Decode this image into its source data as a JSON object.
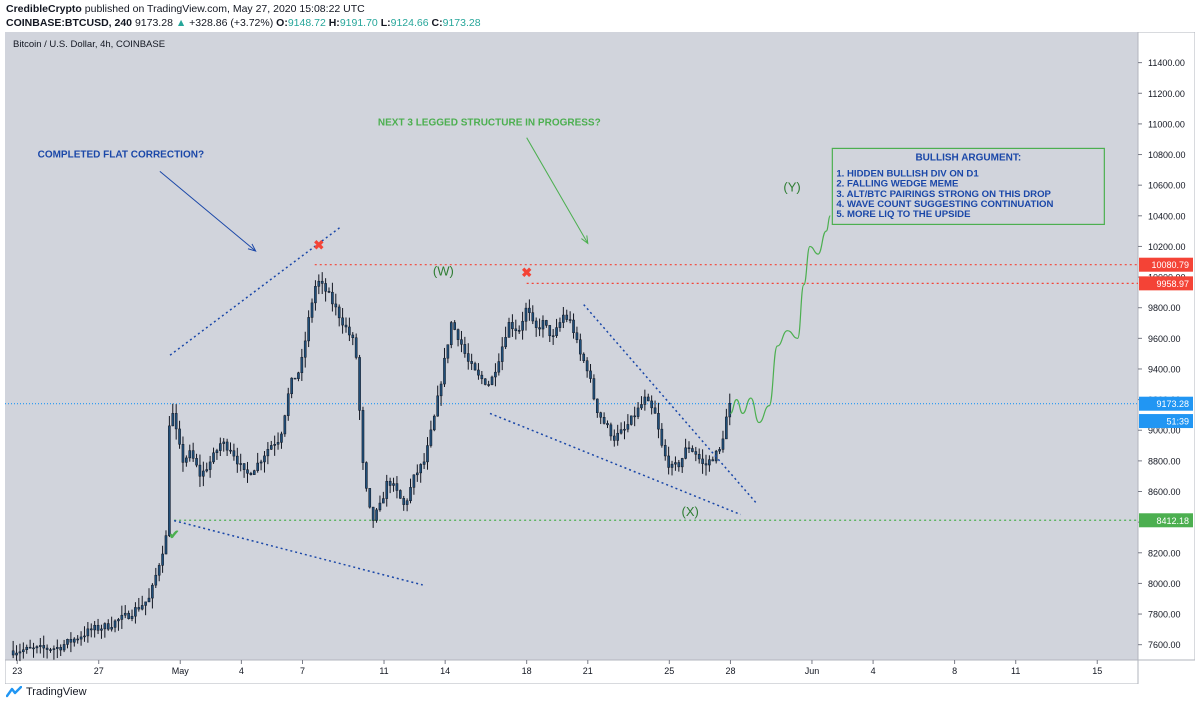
{
  "header": {
    "author": "CredibleCrypto",
    "published_text": "published on TradingView.com, May 27, 2020 15:08:22 UTC",
    "symbol": "COINBASE:BTCUSD, 240",
    "last": "9173.28",
    "change": "+328.86 (+3.72%)",
    "o_label": "O:",
    "o": "9148.72",
    "h_label": "H:",
    "h": "9191.70",
    "l_label": "L:",
    "l": "9124.66",
    "c_label": "C:",
    "c": "9173.28"
  },
  "footer": {
    "brand": "TradingView"
  },
  "chart_data": {
    "type": "candlestick",
    "title": "Bitcoin / U.S. Dollar, 4h, COINBASE",
    "ylim": [
      7500,
      11600
    ],
    "y_ticks": [
      7600,
      7800,
      8000,
      8200,
      8400,
      8600,
      8800,
      9000,
      9200,
      9400,
      9600,
      9800,
      10000,
      10200,
      10400,
      10600,
      10800,
      11000,
      11200,
      11400
    ],
    "y_tick_labels": [
      "7600.00",
      "7800.00",
      "8000.00",
      "8200.00",
      "8400.00",
      "8600.00",
      "8800.00",
      "9000.00",
      "9200.00",
      "9400.00",
      "9600.00",
      "9800.00",
      "10000.00",
      "10200.00",
      "10400.00",
      "10600.00",
      "10800.00",
      "11000.00",
      "11200.00",
      "11400.00"
    ],
    "x_range_days": [
      -8.6,
      47.0
    ],
    "x_ticks": [
      {
        "d": -8,
        "label": "23"
      },
      {
        "d": -4,
        "label": "27"
      },
      {
        "d": 0,
        "label": "May"
      },
      {
        "d": 3,
        "label": "4"
      },
      {
        "d": 6,
        "label": "7"
      },
      {
        "d": 10,
        "label": "11"
      },
      {
        "d": 13,
        "label": "14"
      },
      {
        "d": 17,
        "label": "18"
      },
      {
        "d": 20,
        "label": "21"
      },
      {
        "d": 24,
        "label": "25"
      },
      {
        "d": 27,
        "label": "28"
      },
      {
        "d": 31,
        "label": "Jun"
      },
      {
        "d": 34,
        "label": "4"
      },
      {
        "d": 38,
        "label": "8"
      },
      {
        "d": 41,
        "label": "11"
      },
      {
        "d": 45,
        "label": "15"
      },
      {
        "d": 48,
        "label": "18"
      }
    ],
    "price_anchors": [
      [
        -8.2,
        7560
      ],
      [
        -6,
        7580
      ],
      [
        -4.3,
        7700
      ],
      [
        -3.6,
        7720
      ],
      [
        -2.6,
        7790
      ],
      [
        -1.5,
        7900
      ],
      [
        -0.7,
        8300
      ],
      [
        -0.5,
        9200
      ],
      [
        -0.3,
        9050
      ],
      [
        0.1,
        8800
      ],
      [
        0.5,
        8850
      ],
      [
        1.0,
        8700
      ],
      [
        1.6,
        8820
      ],
      [
        2.0,
        8920
      ],
      [
        2.5,
        8880
      ],
      [
        3.2,
        8700
      ],
      [
        3.8,
        8780
      ],
      [
        4.4,
        8900
      ],
      [
        4.9,
        8950
      ],
      [
        5.4,
        9300
      ],
      [
        5.9,
        9400
      ],
      [
        6.4,
        9800
      ],
      [
        6.7,
        9980
      ],
      [
        7.2,
        9900
      ],
      [
        7.6,
        9800
      ],
      [
        8.0,
        9700
      ],
      [
        8.6,
        9550
      ],
      [
        9.0,
        8700
      ],
      [
        9.4,
        8400
      ],
      [
        9.8,
        8500
      ],
      [
        10.2,
        8680
      ],
      [
        10.6,
        8600
      ],
      [
        11.0,
        8500
      ],
      [
        11.5,
        8700
      ],
      [
        12.0,
        8800
      ],
      [
        12.5,
        9100
      ],
      [
        12.9,
        9400
      ],
      [
        13.3,
        9700
      ],
      [
        13.7,
        9600
      ],
      [
        14.1,
        9450
      ],
      [
        14.6,
        9350
      ],
      [
        15.2,
        9300
      ],
      [
        15.7,
        9500
      ],
      [
        16.1,
        9700
      ],
      [
        16.6,
        9650
      ],
      [
        17.0,
        9800
      ],
      [
        17.4,
        9650
      ],
      [
        17.8,
        9700
      ],
      [
        18.3,
        9600
      ],
      [
        18.8,
        9750
      ],
      [
        19.2,
        9700
      ],
      [
        19.6,
        9500
      ],
      [
        20.0,
        9400
      ],
      [
        20.4,
        9150
      ],
      [
        20.8,
        9050
      ],
      [
        21.3,
        8950
      ],
      [
        21.8,
        9000
      ],
      [
        22.3,
        9100
      ],
      [
        22.8,
        9200
      ],
      [
        23.3,
        9100
      ],
      [
        23.7,
        8850
      ],
      [
        24.1,
        8750
      ],
      [
        24.5,
        8780
      ],
      [
        24.9,
        8900
      ],
      [
        25.3,
        8850
      ],
      [
        25.7,
        8760
      ],
      [
        26.1,
        8820
      ],
      [
        26.5,
        8870
      ],
      [
        26.8,
        9080
      ],
      [
        27.0,
        9173
      ]
    ],
    "last_price": 9173.28,
    "price_tags": [
      {
        "label": "10080.79",
        "price": 10080.79,
        "color": "#f44336"
      },
      {
        "label": "9958.97",
        "price": 9958.97,
        "color": "#f44336"
      },
      {
        "label": "9173.28",
        "price": 9173.28,
        "color": "#2196f3"
      },
      {
        "label": "51:39",
        "price": 9060,
        "color": "#2196f3"
      },
      {
        "label": "8412.18",
        "price": 8412.18,
        "color": "#4caf50"
      }
    ],
    "hlines": [
      {
        "price": 10080.79,
        "from": 6.6,
        "color": "#f44336",
        "dash": "2,3"
      },
      {
        "price": 9958.97,
        "from": 17.0,
        "color": "#f44336",
        "dash": "2,3"
      },
      {
        "price": 9173.28,
        "from": -8.6,
        "color": "#2196f3",
        "dash": "1,2"
      },
      {
        "price": 8412.18,
        "from": -0.3,
        "color": "#4caf50",
        "dash": "2,3"
      }
    ],
    "trendlines": [
      {
        "p1": [
          -0.5,
          9490
        ],
        "p2": [
          7.9,
          10330
        ],
        "color": "#1a47a8"
      },
      {
        "p1": [
          -0.3,
          8410
        ],
        "p2": [
          11.9,
          7990
        ],
        "color": "#1a47a8"
      },
      {
        "p1": [
          15.2,
          9110
        ],
        "p2": [
          27.5,
          8450
        ],
        "color": "#1a47a8"
      },
      {
        "p1": [
          19.8,
          9820
        ],
        "p2": [
          28.3,
          8520
        ],
        "color": "#1a47a8"
      }
    ],
    "arrows": [
      {
        "p1": [
          -1.0,
          10690
        ],
        "p2": [
          3.7,
          10170
        ],
        "color": "#1a47a8"
      },
      {
        "p1": [
          17.0,
          10910
        ],
        "p2": [
          20.0,
          10220
        ],
        "color": "#4caf50"
      }
    ],
    "annotations": [
      {
        "text": "COMPLETED FLAT CORRECTION?",
        "d": -7.0,
        "price": 10780,
        "color": "#1a47a8",
        "size": 10,
        "bold": true
      },
      {
        "text": "NEXT 3 LEGGED STRUCTURE IN PROGRESS?",
        "d": 9.7,
        "price": 10990,
        "color": "#4caf50",
        "size": 10,
        "bold": true
      },
      {
        "text": "(W)",
        "d": 12.4,
        "price": 10010,
        "color": "#2e7d32",
        "size": 13,
        "bold": false
      },
      {
        "text": "(X)",
        "d": 24.6,
        "price": 8440,
        "color": "#2e7d32",
        "size": 13,
        "bold": false
      },
      {
        "text": "(Y)",
        "d": 29.6,
        "price": 10560,
        "color": "#2e7d32",
        "size": 13,
        "bold": false
      }
    ],
    "markers": [
      {
        "symbol": "✖",
        "d": 6.8,
        "price": 10180,
        "color": "#f44336"
      },
      {
        "symbol": "✖",
        "d": 17.0,
        "price": 10000,
        "color": "#f44336"
      },
      {
        "symbol": "✔",
        "d": -0.3,
        "price": 8290,
        "color": "#4caf50"
      }
    ],
    "projection": [
      [
        27.0,
        9110
      ],
      [
        27.3,
        9200
      ],
      [
        27.6,
        9110
      ],
      [
        28.0,
        9210
      ],
      [
        28.4,
        9050
      ],
      [
        28.9,
        9160
      ],
      [
        29.3,
        9550
      ],
      [
        29.8,
        9650
      ],
      [
        30.3,
        9600
      ],
      [
        30.6,
        9950
      ],
      [
        30.9,
        10200
      ],
      [
        31.3,
        10150
      ],
      [
        31.7,
        10300
      ],
      [
        31.9,
        10400
      ]
    ],
    "info_box": {
      "title": "BULLISH ARGUMENT:",
      "lines": [
        "1. HIDDEN BULLISH DIV ON D1",
        "2. FALLING WEDGE MEME",
        "3. ALT/BTC PAIRINGS STRONG ON THIS DROP",
        "4. WAVE COUNT SUGGESTING CONTINUATION",
        "5. MORE LIQ TO THE UPSIDE"
      ],
      "d": 32.0,
      "price_top": 10840,
      "text_color": "#1a47a8",
      "border_color": "#4caf50"
    },
    "colors": {
      "plot_bg": "#d1d4dc",
      "candle_body": "#1f4e79",
      "candle_wick": "#131722",
      "axis_text": "#131722"
    },
    "grid": false
  }
}
